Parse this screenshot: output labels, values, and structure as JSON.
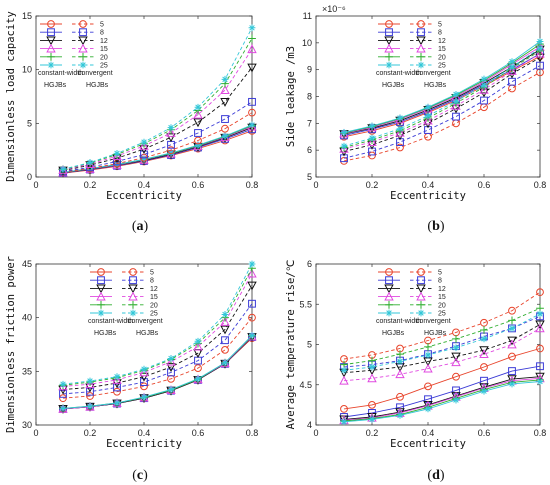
{
  "chart_data": [
    {
      "type": "line",
      "panel_label": [
        "(",
        "a",
        ")"
      ],
      "xlabel": "Eccentricity",
      "ylabel": "Dimensionless load capacity",
      "xlim": [
        0,
        0.8
      ],
      "ylim": [
        0,
        15
      ],
      "xticks": [
        "0",
        "0.2",
        "0.4",
        "0.6",
        "0.8"
      ],
      "yticks": [
        "0",
        "5",
        "10",
        "15"
      ],
      "legend_pos": "upper-left",
      "x": [
        0.1,
        0.2,
        0.3,
        0.4,
        0.5,
        0.6,
        0.7,
        0.8
      ],
      "solid": [
        [
          0.35,
          0.65,
          1.0,
          1.45,
          2.0,
          2.65,
          3.4,
          4.3
        ],
        [
          0.38,
          0.7,
          1.05,
          1.5,
          2.05,
          2.75,
          3.55,
          4.45
        ],
        [
          0.4,
          0.72,
          1.1,
          1.55,
          2.12,
          2.82,
          3.65,
          4.6
        ],
        [
          0.42,
          0.75,
          1.12,
          1.6,
          2.18,
          2.88,
          3.72,
          4.7
        ],
        [
          0.43,
          0.77,
          1.15,
          1.62,
          2.2,
          2.92,
          3.78,
          4.78
        ],
        [
          0.44,
          0.78,
          1.17,
          1.65,
          2.24,
          2.96,
          3.82,
          4.85
        ]
      ],
      "dashed": [
        [
          0.45,
          0.8,
          1.25,
          1.8,
          2.5,
          3.4,
          4.5,
          6.0
        ],
        [
          0.5,
          0.9,
          1.45,
          2.1,
          3.0,
          4.1,
          5.4,
          7.0
        ],
        [
          0.6,
          1.1,
          1.75,
          2.6,
          3.7,
          5.1,
          7.0,
          10.2
        ],
        [
          0.65,
          1.2,
          1.95,
          2.9,
          4.1,
          5.8,
          8.1,
          11.9
        ],
        [
          0.7,
          1.3,
          2.1,
          3.1,
          4.4,
          6.2,
          8.7,
          12.9
        ],
        [
          0.72,
          1.35,
          2.2,
          3.25,
          4.6,
          6.5,
          9.1,
          13.9
        ]
      ]
    },
    {
      "type": "line",
      "panel_label": [
        "(",
        "b",
        ")"
      ],
      "xlabel": "Eccentricity",
      "ylabel": "Side leakage /m3",
      "exponent": "×10⁻⁶",
      "xlim": [
        0,
        0.8
      ],
      "ylim": [
        5,
        11
      ],
      "xticks": [
        "0",
        "0.2",
        "0.4",
        "0.6",
        "0.8"
      ],
      "yticks": [
        "5",
        "6",
        "7",
        "8",
        "9",
        "10",
        "11"
      ],
      "legend_pos": "upper-right",
      "x": [
        0.1,
        0.2,
        0.3,
        0.4,
        0.5,
        0.6,
        0.7,
        0.8
      ],
      "solid": [
        [
          6.5,
          6.72,
          7.0,
          7.4,
          7.85,
          8.4,
          8.95,
          9.5
        ],
        [
          6.55,
          6.78,
          7.05,
          7.45,
          7.9,
          8.45,
          9.0,
          9.6
        ],
        [
          6.6,
          6.82,
          7.1,
          7.5,
          7.95,
          8.5,
          9.1,
          9.75
        ],
        [
          6.62,
          6.85,
          7.15,
          7.55,
          8.0,
          8.55,
          9.2,
          9.85
        ],
        [
          6.64,
          6.88,
          7.18,
          7.58,
          8.05,
          8.6,
          9.25,
          9.95
        ],
        [
          6.66,
          6.9,
          7.2,
          7.6,
          8.08,
          8.65,
          9.3,
          10.05
        ]
      ],
      "dashed": [
        [
          5.6,
          5.8,
          6.1,
          6.5,
          7.0,
          7.6,
          8.3,
          8.9
        ],
        [
          5.7,
          5.95,
          6.3,
          6.75,
          7.25,
          7.85,
          8.55,
          9.15
        ],
        [
          5.95,
          6.2,
          6.55,
          7.0,
          7.55,
          8.15,
          8.85,
          9.45
        ],
        [
          6.05,
          6.3,
          6.65,
          7.1,
          7.65,
          8.25,
          8.95,
          9.6
        ],
        [
          6.1,
          6.38,
          6.72,
          7.2,
          7.75,
          8.35,
          9.05,
          9.7
        ],
        [
          6.15,
          6.45,
          6.8,
          7.28,
          7.82,
          8.42,
          9.1,
          9.8
        ]
      ]
    },
    {
      "type": "line",
      "panel_label": [
        "(",
        "c",
        ")"
      ],
      "xlabel": "Eccentricity",
      "ylabel": "Dimensionless friction power",
      "xlim": [
        0,
        0.8
      ],
      "ylim": [
        30,
        45
      ],
      "xticks": [
        "0",
        "0.2",
        "0.4",
        "0.6",
        "0.8"
      ],
      "yticks": [
        "30",
        "35",
        "40",
        "45"
      ],
      "legend_pos": "upper-right",
      "x": [
        0.1,
        0.2,
        0.3,
        0.4,
        0.5,
        0.6,
        0.7,
        0.8
      ],
      "solid": [
        [
          31.5,
          31.7,
          32.0,
          32.5,
          33.2,
          34.2,
          35.7,
          38.1
        ],
        [
          31.5,
          31.7,
          32.0,
          32.5,
          33.2,
          34.2,
          35.7,
          38.2
        ],
        [
          31.5,
          31.7,
          32.0,
          32.5,
          33.2,
          34.2,
          35.7,
          38.2
        ],
        [
          31.5,
          31.7,
          32.05,
          32.55,
          33.25,
          34.25,
          35.75,
          38.25
        ],
        [
          31.55,
          31.75,
          32.05,
          32.55,
          33.25,
          34.25,
          35.8,
          38.3
        ],
        [
          31.55,
          31.75,
          32.05,
          32.6,
          33.3,
          34.3,
          35.8,
          38.35
        ]
      ],
      "dashed": [
        [
          32.5,
          32.7,
          33.1,
          33.6,
          34.3,
          35.3,
          37.0,
          40.0
        ],
        [
          32.9,
          33.1,
          33.5,
          34.0,
          34.9,
          36.0,
          37.9,
          41.3
        ],
        [
          33.3,
          33.5,
          33.9,
          34.5,
          35.4,
          36.7,
          38.9,
          43.0
        ],
        [
          33.6,
          33.8,
          34.2,
          34.9,
          35.9,
          37.3,
          39.6,
          44.1
        ],
        [
          33.7,
          34.0,
          34.4,
          35.1,
          36.1,
          37.6,
          40.0,
          44.6
        ],
        [
          33.8,
          34.1,
          34.5,
          35.2,
          36.2,
          37.8,
          40.3,
          45.0
        ]
      ]
    },
    {
      "type": "line",
      "panel_label": [
        "(",
        "d",
        ")"
      ],
      "xlabel": "Eccentricity",
      "ylabel": "Average temperature rise/℃",
      "xlim": [
        0,
        0.8
      ],
      "ylim": [
        4,
        6
      ],
      "xticks": [
        "0",
        "0.2",
        "0.4",
        "0.6",
        "0.8"
      ],
      "yticks": [
        "4",
        "4.5",
        "5",
        "5.5",
        "6"
      ],
      "legend_pos": "upper-right",
      "x": [
        0.1,
        0.2,
        0.3,
        0.4,
        0.5,
        0.6,
        0.7,
        0.8
      ],
      "solid": [
        [
          4.2,
          4.25,
          4.35,
          4.48,
          4.6,
          4.72,
          4.85,
          4.95
        ],
        [
          4.1,
          4.15,
          4.22,
          4.32,
          4.43,
          4.55,
          4.67,
          4.73
        ],
        [
          4.07,
          4.1,
          4.16,
          4.25,
          4.36,
          4.47,
          4.57,
          4.6
        ],
        [
          4.06,
          4.09,
          4.15,
          4.24,
          4.35,
          4.46,
          4.55,
          4.58
        ],
        [
          4.05,
          4.08,
          4.13,
          4.22,
          4.33,
          4.44,
          4.53,
          4.56
        ],
        [
          4.04,
          4.07,
          4.12,
          4.2,
          4.31,
          4.42,
          4.51,
          4.54
        ]
      ],
      "dashed": [
        [
          4.82,
          4.87,
          4.95,
          5.05,
          5.15,
          5.27,
          5.42,
          5.65
        ],
        [
          4.72,
          4.75,
          4.8,
          4.88,
          4.98,
          5.1,
          5.2,
          5.35
        ],
        [
          4.65,
          4.68,
          4.72,
          4.79,
          4.85,
          4.93,
          5.05,
          5.25
        ],
        [
          4.55,
          4.58,
          4.63,
          4.7,
          4.78,
          4.88,
          5.0,
          5.2
        ],
        [
          4.75,
          4.8,
          4.88,
          4.97,
          5.07,
          5.18,
          5.3,
          5.45
        ],
        [
          4.68,
          4.72,
          4.79,
          4.87,
          4.96,
          5.07,
          5.2,
          5.38
        ]
      ]
    }
  ],
  "legend": {
    "numbers": [
      "5",
      "8",
      "12",
      "15",
      "20",
      "25"
    ],
    "group_solid": [
      "constant-width",
      "HGJBs"
    ],
    "group_dashed": [
      "convergent",
      "HGJBs"
    ]
  },
  "series_styles": [
    {
      "color": "#e8452c",
      "marker": "circle"
    },
    {
      "color": "#3b3bd6",
      "marker": "square"
    },
    {
      "color": "#111111",
      "marker": "triangle-down"
    },
    {
      "color": "#e04ae0",
      "marker": "triangle-up"
    },
    {
      "color": "#2fae2f",
      "marker": "plus"
    },
    {
      "color": "#33c7d8",
      "marker": "asterisk"
    }
  ]
}
